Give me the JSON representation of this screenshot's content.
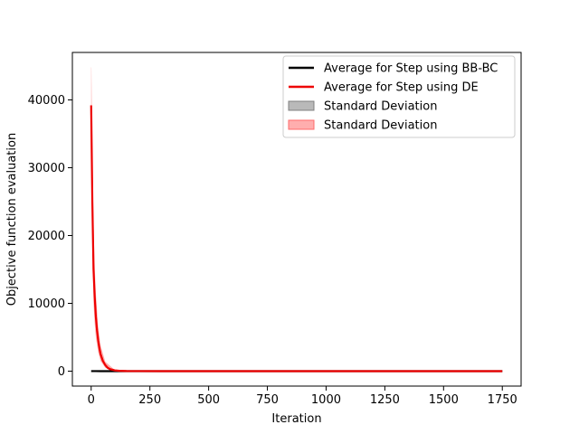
{
  "chart_data": {
    "type": "line",
    "xlabel": "Iteration",
    "ylabel": "Objective function evaluation",
    "xlim": [
      -80,
      1830
    ],
    "ylim": [
      -2200,
      47000
    ],
    "x_ticks": [
      0,
      250,
      500,
      750,
      1000,
      1250,
      1500,
      1750
    ],
    "y_ticks": [
      0,
      10000,
      20000,
      30000,
      40000
    ],
    "grid": false,
    "legend_position": "top-right",
    "series": [
      {
        "name": "Average for Step using BB-BC",
        "kind": "line",
        "color": "#000000",
        "x": [
          0,
          10,
          20,
          40,
          60,
          100,
          200,
          500,
          1000,
          1500,
          1750
        ],
        "y": [
          10,
          8,
          5,
          3,
          2,
          1,
          0,
          0,
          0,
          0,
          0
        ]
      },
      {
        "name": "Average for Step using DE",
        "kind": "line",
        "color": "#ee0000",
        "x": [
          0,
          5,
          10,
          15,
          20,
          25,
          30,
          35,
          40,
          50,
          60,
          70,
          80,
          100,
          120,
          150,
          200,
          300,
          500,
          1000,
          1500,
          1750
        ],
        "y": [
          39200,
          25000,
          15000,
          11000,
          8000,
          6000,
          4500,
          3400,
          2500,
          1500,
          900,
          500,
          300,
          120,
          50,
          15,
          5,
          0,
          0,
          0,
          0,
          0
        ]
      },
      {
        "name": "Standard Deviation",
        "kind": "band",
        "color": "#808080",
        "x": [
          0,
          20,
          40,
          60,
          100,
          200,
          500,
          1750
        ],
        "upper": [
          40,
          30,
          20,
          15,
          10,
          5,
          2,
          0
        ],
        "lower": [
          0,
          0,
          0,
          0,
          0,
          0,
          0,
          0
        ]
      },
      {
        "name": "Standard Deviation",
        "kind": "band",
        "color": "#ff6b6b",
        "x": [
          0,
          1,
          3,
          6,
          10,
          15,
          20,
          30,
          40,
          60,
          100,
          200,
          500,
          1750
        ],
        "upper": [
          44800,
          44800,
          38000,
          30000,
          22000,
          15500,
          11500,
          6500,
          3800,
          1400,
          200,
          10,
          0,
          0
        ],
        "lower": [
          33600,
          30000,
          24000,
          17000,
          10000,
          7000,
          5000,
          2800,
          1500,
          500,
          60,
          0,
          0,
          0
        ]
      }
    ]
  }
}
